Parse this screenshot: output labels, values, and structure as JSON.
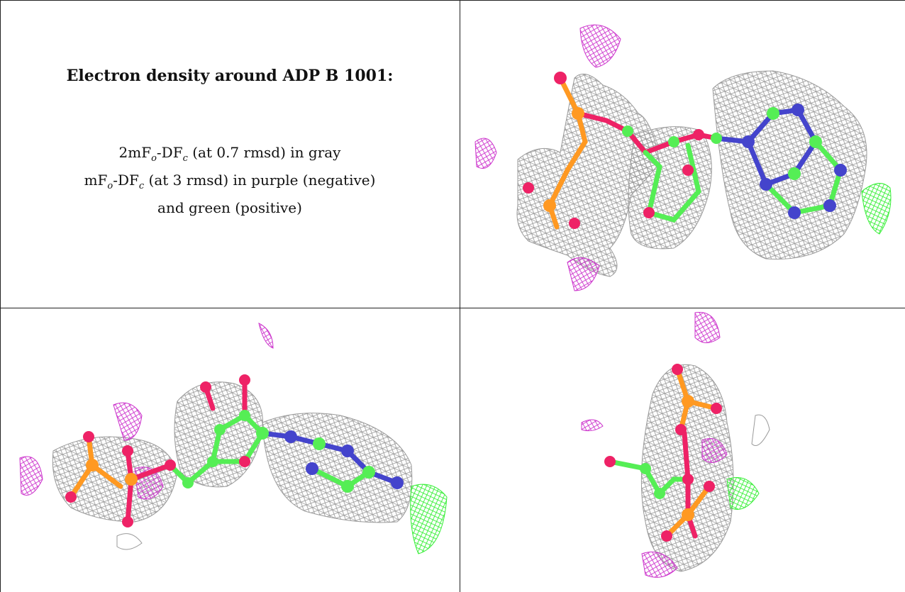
{
  "caption": {
    "title": "Electron density around ADP B 1001:",
    "line1": {
      "pre": "2mF",
      "sub1": "o",
      "mid": "-DF",
      "sub2": "c",
      "post": " (at 0.7 rmsd) in gray"
    },
    "line2": {
      "pre": "mF",
      "sub1": "o",
      "mid": "-DF",
      "sub2": "c",
      "post": " (at 3 rmsd) in purple (negative)"
    },
    "line3": "and green (positive)"
  },
  "colors": {
    "mesh_gray": "#9a9a9a",
    "neg_purple": "#cc33cc",
    "pos_green": "#33ee33",
    "carbon": "#55ee55",
    "oxygen": "#ee2266",
    "nitrogen": "#4444cc",
    "phosphorus": "#ff9922"
  }
}
